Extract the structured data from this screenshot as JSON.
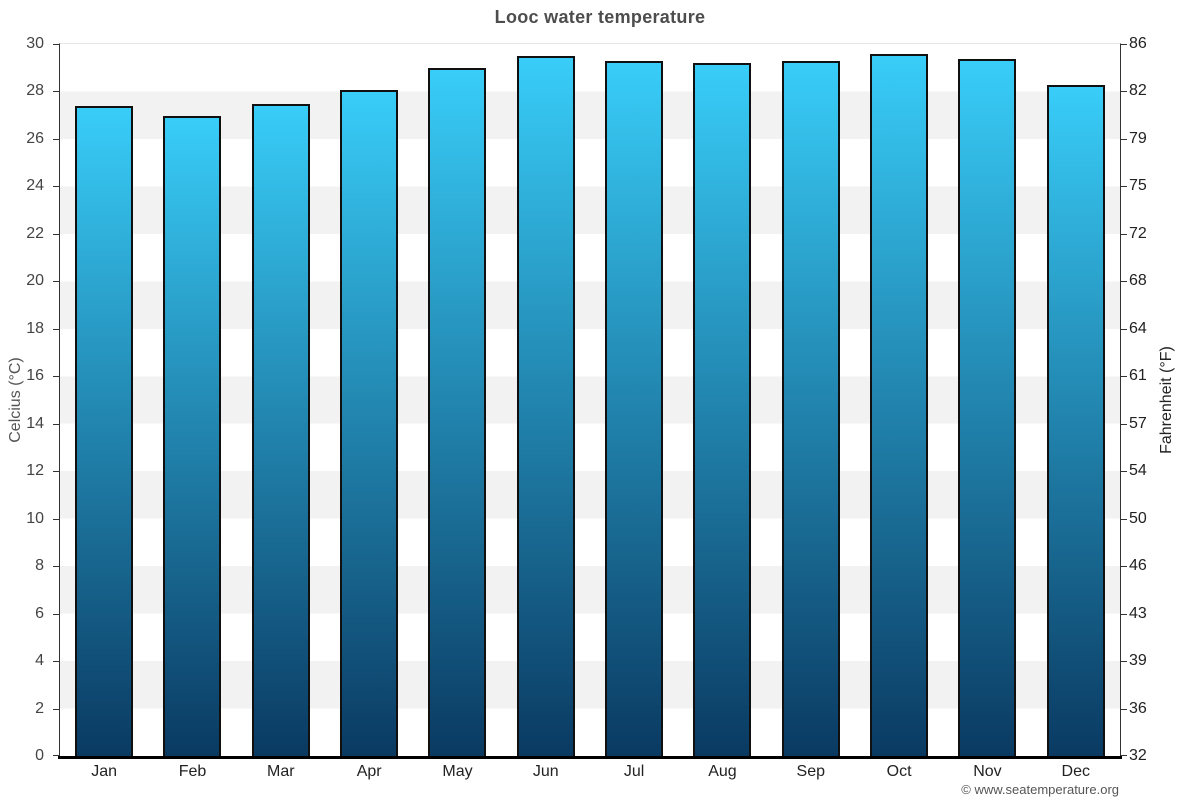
{
  "header": {
    "title": "Looc water temperature"
  },
  "chart_data": {
    "type": "bar",
    "title": "Looc water temperature",
    "categories": [
      "Jan",
      "Feb",
      "Mar",
      "Apr",
      "May",
      "Jun",
      "Jul",
      "Aug",
      "Sep",
      "Oct",
      "Nov",
      "Dec"
    ],
    "values": [
      27.3,
      26.9,
      27.4,
      28.0,
      28.9,
      29.4,
      29.2,
      29.1,
      29.2,
      29.5,
      29.3,
      28.2
    ],
    "ylabel_left": "Celcius (°C)",
    "ylabel_right": "Fahrenheit (°F)",
    "ylim": [
      0,
      30
    ],
    "celsius_ticks": [
      30,
      28,
      26,
      24,
      22,
      20,
      18,
      16,
      14,
      12,
      10,
      8,
      6,
      4,
      2,
      0
    ],
    "fahrenheit_ticks": [
      86,
      82,
      79,
      75,
      72,
      68,
      64,
      61,
      57,
      54,
      50,
      46,
      43,
      39,
      36,
      32
    ],
    "grid": "alternating-horizontal-bands",
    "legend": "none",
    "colors": {
      "bar_gradient_top": "#38cdf8",
      "bar_gradient_bottom": "#0a3a62",
      "bar_border": "#101010",
      "band_gray": "#f2f2f2",
      "band_white": "#ffffff",
      "title_text": "#4d4d4d",
      "axis_line": "#333333"
    }
  },
  "footer": {
    "credit": "© www.seatemperature.org"
  }
}
